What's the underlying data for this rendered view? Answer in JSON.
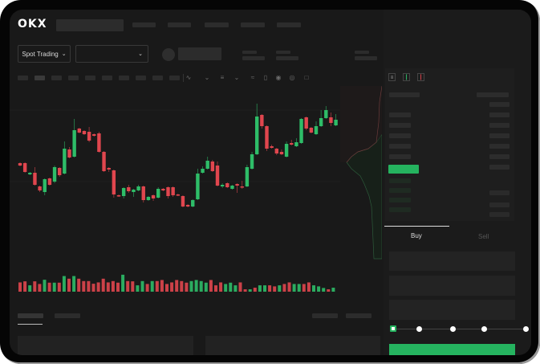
{
  "header": {
    "brand": "OKX",
    "nav_placeholders": 5
  },
  "market_bar": {
    "mode_label": "Spot Trading",
    "mode_chevron_icon": "chevron-down-icon",
    "pair_select_chevron_icon": "chevron-down-icon"
  },
  "toolbar": {
    "interval_buttons": 10,
    "icons": [
      "indicator-icon",
      "chart-type-icon",
      "ohlc-icon",
      "chevron-down-icon",
      "line-tool-icon",
      "ruler-icon",
      "camera-icon",
      "target-icon",
      "expand-icon"
    ]
  },
  "order_book": {
    "view_icons": [
      "book-both-icon",
      "book-bids-icon",
      "book-asks-icon"
    ]
  },
  "trade_form": {
    "tabs": [
      {
        "label": "Buy",
        "active": true
      },
      {
        "label": "Sell",
        "active": false
      }
    ],
    "slider_value_percent": 0,
    "slider_stops": [
      0,
      25,
      50,
      75,
      100
    ],
    "submit_color": "#25b35f"
  },
  "colors": {
    "up": "#2ebd68",
    "down": "#e0464e",
    "background": "#191919"
  },
  "chart_data": {
    "type": "candlestick",
    "title": "",
    "xlabel": "",
    "ylabel": "",
    "grid": true,
    "candles": [
      [
        97,
        94,
        98,
        93
      ],
      [
        97,
        86,
        98,
        85
      ],
      [
        83,
        85,
        86,
        82
      ],
      [
        85,
        70,
        92,
        69
      ],
      [
        68,
        63,
        69,
        61
      ],
      [
        61,
        77,
        78,
        57
      ],
      [
        78,
        70,
        79,
        69
      ],
      [
        74,
        92,
        94,
        72
      ],
      [
        91,
        82,
        92,
        80
      ],
      [
        84,
        115,
        124,
        83
      ],
      [
        114,
        104,
        117,
        103
      ],
      [
        105,
        138,
        152,
        104
      ],
      [
        140,
        135,
        141,
        134
      ],
      [
        137,
        133,
        138,
        132
      ],
      [
        136,
        125,
        142,
        123
      ],
      [
        133,
        131,
        134,
        130
      ],
      [
        134,
        111,
        136,
        110
      ],
      [
        111,
        87,
        112,
        86
      ],
      [
        91,
        89,
        92,
        86
      ],
      [
        88,
        58,
        89,
        54
      ],
      [
        57,
        56,
        58,
        55
      ],
      [
        56,
        66,
        67,
        53
      ],
      [
        67,
        62,
        70,
        60
      ],
      [
        61,
        64,
        65,
        55
      ],
      [
        63,
        68,
        70,
        62
      ],
      [
        68,
        51,
        69,
        48
      ],
      [
        51,
        55,
        56,
        50
      ],
      [
        57,
        53,
        58,
        50
      ],
      [
        54,
        65,
        67,
        53
      ],
      [
        65,
        63,
        66,
        62
      ],
      [
        67,
        56,
        68,
        53
      ],
      [
        67,
        57,
        68,
        55
      ],
      [
        58,
        57,
        59,
        56
      ],
      [
        56,
        43,
        57,
        42
      ],
      [
        45,
        43,
        46,
        42
      ],
      [
        43,
        51,
        52,
        42
      ],
      [
        52,
        84,
        90,
        51
      ],
      [
        85,
        90,
        93,
        84
      ],
      [
        90,
        100,
        105,
        89
      ],
      [
        99,
        87,
        101,
        86
      ],
      [
        94,
        69,
        99,
        68
      ],
      [
        68,
        70,
        72,
        66
      ],
      [
        72,
        67,
        73,
        66
      ],
      [
        65,
        69,
        70,
        64
      ],
      [
        71,
        69,
        72,
        60
      ],
      [
        68,
        67,
        75,
        65
      ],
      [
        68,
        92,
        95,
        67
      ],
      [
        90,
        108,
        111,
        89
      ],
      [
        108,
        155,
        171,
        107
      ],
      [
        157,
        143,
        158,
        140
      ],
      [
        143,
        115,
        144,
        112
      ],
      [
        118,
        116,
        120,
        115
      ],
      [
        115,
        109,
        116,
        107
      ],
      [
        111,
        108,
        114,
        107
      ],
      [
        105,
        121,
        124,
        104
      ],
      [
        122,
        120,
        126,
        119
      ],
      [
        118,
        123,
        128,
        117
      ],
      [
        122,
        152,
        153,
        121
      ],
      [
        154,
        140,
        155,
        138
      ],
      [
        141,
        135,
        142,
        134
      ],
      [
        133,
        143,
        149,
        132
      ],
      [
        143,
        153,
        163,
        142
      ],
      [
        153,
        163,
        168,
        152
      ],
      [
        154,
        147,
        160,
        143
      ],
      [
        144,
        151,
        158,
        143
      ]
    ],
    "candle_format": [
      "open",
      "close",
      "high",
      "low"
    ],
    "volume": [
      35,
      39,
      24,
      39,
      29,
      45,
      34,
      34,
      34,
      59,
      49,
      59,
      49,
      40,
      40,
      30,
      35,
      49,
      35,
      40,
      34,
      64,
      40,
      39,
      24,
      40,
      29,
      40,
      40,
      44,
      29,
      35,
      44,
      40,
      34,
      40,
      44,
      40,
      34,
      44,
      24,
      35,
      29,
      34,
      24,
      35,
      9,
      9,
      15,
      24,
      24,
      24,
      20,
      24,
      29,
      35,
      29,
      29,
      29,
      35,
      24,
      20,
      14,
      9,
      15
    ],
    "volume_up": [
      0,
      0,
      1,
      0,
      0,
      1,
      0,
      1,
      0,
      1,
      0,
      1,
      0,
      0,
      0,
      0,
      0,
      0,
      0,
      0,
      0,
      1,
      0,
      0,
      1,
      1,
      0,
      1,
      0,
      0,
      0,
      0,
      0,
      0,
      0,
      1,
      1,
      1,
      1,
      0,
      0,
      0,
      1,
      1,
      1,
      0,
      0,
      1,
      0,
      1,
      1,
      0,
      0,
      1,
      0,
      0,
      1,
      1,
      0,
      0,
      1,
      1,
      1,
      0,
      1
    ]
  }
}
